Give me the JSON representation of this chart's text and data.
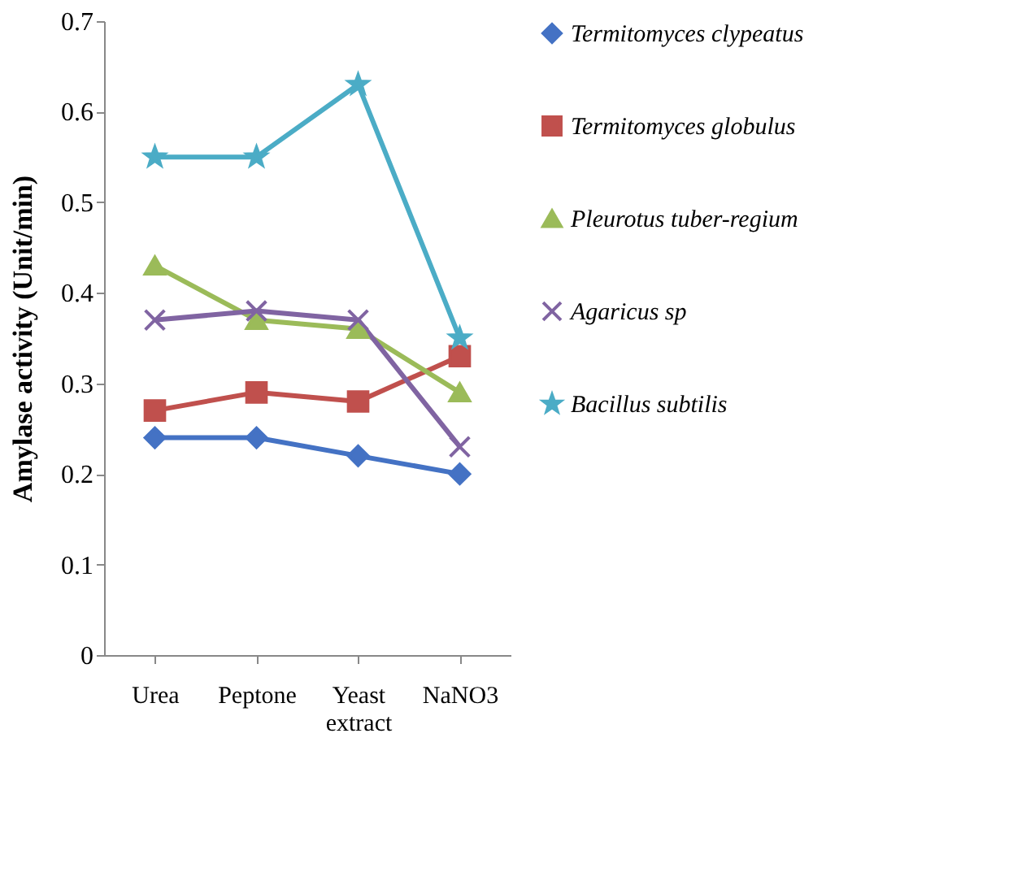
{
  "chart_data": {
    "type": "line",
    "ylabel": "Amylase activity (Unit/min)",
    "categories": [
      "Urea",
      "Peptone",
      "Yeast extract",
      "NaNO3"
    ],
    "series": [
      {
        "name": "Termitomyces clypeatus",
        "color": "#4472c4",
        "marker": "diamond",
        "values": [
          0.24,
          0.24,
          0.22,
          0.2
        ]
      },
      {
        "name": "Termitomyces globulus",
        "color": "#c0504d",
        "marker": "square",
        "values": [
          0.27,
          0.29,
          0.28,
          0.33
        ]
      },
      {
        "name": "Pleurotus tuber-regium",
        "color": "#9bbb59",
        "marker": "triangle",
        "values": [
          0.43,
          0.37,
          0.36,
          0.29
        ]
      },
      {
        "name": "Agaricus sp",
        "color": "#8064a2",
        "marker": "cross",
        "values": [
          0.37,
          0.38,
          0.37,
          0.23
        ]
      },
      {
        "name": "Bacillus subtilis",
        "color": "#4bacc6",
        "marker": "star",
        "values": [
          0.55,
          0.55,
          0.63,
          0.35
        ]
      }
    ],
    "ylim": [
      0,
      0.7
    ],
    "yticks": [
      0,
      0.1,
      0.2,
      0.3,
      0.4,
      0.5,
      0.6,
      0.7
    ],
    "grid": false,
    "legend": "right",
    "line_style": "solid"
  }
}
